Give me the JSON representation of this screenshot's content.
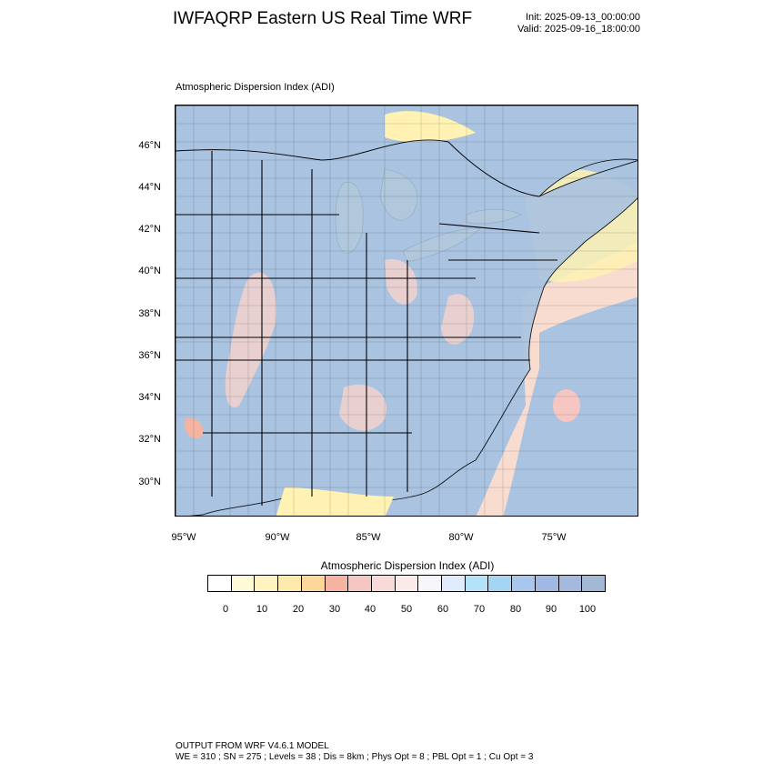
{
  "header": {
    "title": "IWFAQRP Eastern US Real Time WRF",
    "init": "Init: 2025-09-13_00:00:00",
    "valid": "Valid: 2025-09-16_18:00:00"
  },
  "map": {
    "title": "Atmospheric Dispersion Index   (ADI)",
    "lat_labels": [
      "46°N",
      "44°N",
      "42°N",
      "40°N",
      "38°N",
      "36°N",
      "34°N",
      "32°N",
      "30°N"
    ],
    "lon_labels": [
      "95°W",
      "90°W",
      "85°W",
      "80°W",
      "75°W"
    ],
    "colors": {
      "land_good": "#a9c3e0",
      "water": "#a9c3e0",
      "low": "#fff2b3",
      "mid": "#f7d3cc",
      "pale": "#eef3fb",
      "outline": "#000000"
    }
  },
  "colorbar": {
    "title": "Atmospheric Dispersion Index  (ADI)",
    "labels": [
      "0",
      "10",
      "20",
      "30",
      "40",
      "50",
      "60",
      "70",
      "80",
      "90",
      "100"
    ],
    "colors": [
      "#ffffff",
      "#fffbd9",
      "#fff4c0",
      "#ffeaad",
      "#fbd79a",
      "#f4b4a1",
      "#f6c6c2",
      "#f9dad8",
      "#fbeaea",
      "#f7f7fb",
      "#e0ebfb",
      "#b4e3f9",
      "#a4d6f3",
      "#a9c6ef",
      "#a1b7e4",
      "#a5b9de",
      "#a3b8d3"
    ]
  },
  "footer": {
    "line1": "OUTPUT FROM WRF V4.6.1 MODEL",
    "line2": "WE = 310 ; SN = 275 ; Levels = 38 ; Dis = 8km ; Phys Opt = 8 ; PBL Opt = 1 ; Cu Opt = 3"
  }
}
